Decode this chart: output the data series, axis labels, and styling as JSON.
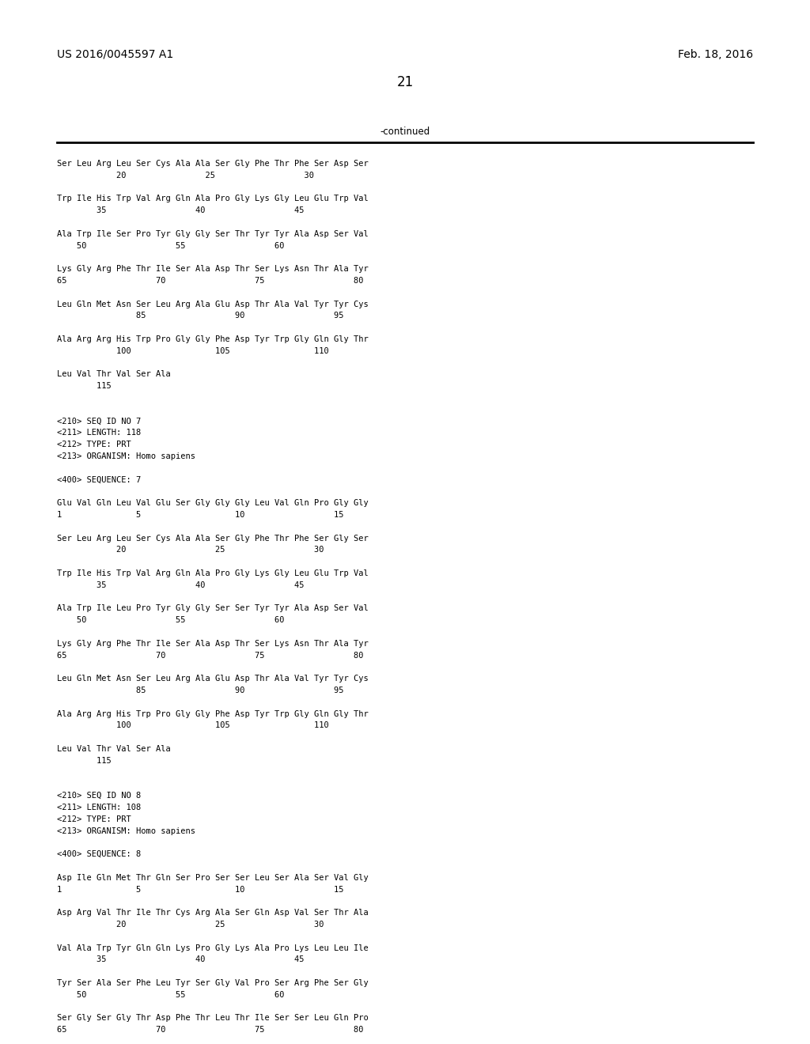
{
  "header_left": "US 2016/0045597 A1",
  "header_right": "Feb. 18, 2016",
  "page_number": "21",
  "continued_label": "-continued",
  "background_color": "#ffffff",
  "text_color": "#000000",
  "lines": [
    "Ser Leu Arg Leu Ser Cys Ala Ala Ser Gly Phe Thr Phe Ser Asp Ser",
    "            20                25                  30",
    "",
    "Trp Ile His Trp Val Arg Gln Ala Pro Gly Lys Gly Leu Glu Trp Val",
    "        35                  40                  45",
    "",
    "Ala Trp Ile Ser Pro Tyr Gly Gly Ser Thr Tyr Tyr Ala Asp Ser Val",
    "    50                  55                  60",
    "",
    "Lys Gly Arg Phe Thr Ile Ser Ala Asp Thr Ser Lys Asn Thr Ala Tyr",
    "65                  70                  75                  80",
    "",
    "Leu Gln Met Asn Ser Leu Arg Ala Glu Asp Thr Ala Val Tyr Tyr Cys",
    "                85                  90                  95",
    "",
    "Ala Arg Arg His Trp Pro Gly Gly Phe Asp Tyr Trp Gly Gln Gly Thr",
    "            100                 105                 110",
    "",
    "Leu Val Thr Val Ser Ala",
    "        115",
    "",
    "",
    "<210> SEQ ID NO 7",
    "<211> LENGTH: 118",
    "<212> TYPE: PRT",
    "<213> ORGANISM: Homo sapiens",
    "",
    "<400> SEQUENCE: 7",
    "",
    "Glu Val Gln Leu Val Glu Ser Gly Gly Gly Leu Val Gln Pro Gly Gly",
    "1               5                   10                  15",
    "",
    "Ser Leu Arg Leu Ser Cys Ala Ala Ser Gly Phe Thr Phe Ser Gly Ser",
    "            20                  25                  30",
    "",
    "Trp Ile His Trp Val Arg Gln Ala Pro Gly Lys Gly Leu Glu Trp Val",
    "        35                  40                  45",
    "",
    "Ala Trp Ile Leu Pro Tyr Gly Gly Ser Ser Tyr Tyr Ala Asp Ser Val",
    "    50                  55                  60",
    "",
    "Lys Gly Arg Phe Thr Ile Ser Ala Asp Thr Ser Lys Asn Thr Ala Tyr",
    "65                  70                  75                  80",
    "",
    "Leu Gln Met Asn Ser Leu Arg Ala Glu Asp Thr Ala Val Tyr Tyr Cys",
    "                85                  90                  95",
    "",
    "Ala Arg Arg His Trp Pro Gly Gly Phe Asp Tyr Trp Gly Gln Gly Thr",
    "            100                 105                 110",
    "",
    "Leu Val Thr Val Ser Ala",
    "        115",
    "",
    "",
    "<210> SEQ ID NO 8",
    "<211> LENGTH: 108",
    "<212> TYPE: PRT",
    "<213> ORGANISM: Homo sapiens",
    "",
    "<400> SEQUENCE: 8",
    "",
    "Asp Ile Gln Met Thr Gln Ser Pro Ser Ser Leu Ser Ala Ser Val Gly",
    "1               5                   10                  15",
    "",
    "Asp Arg Val Thr Ile Thr Cys Arg Ala Ser Gln Asp Val Ser Thr Ala",
    "            20                  25                  30",
    "",
    "Val Ala Trp Tyr Gln Gln Lys Pro Gly Lys Ala Pro Lys Leu Leu Ile",
    "        35                  40                  45",
    "",
    "Tyr Ser Ala Ser Phe Leu Tyr Ser Gly Val Pro Ser Arg Phe Ser Gly",
    "    50                  55                  60",
    "",
    "Ser Gly Ser Gly Thr Asp Phe Thr Leu Thr Ile Ser Ser Leu Gln Pro",
    "65                  70                  75                  80"
  ]
}
